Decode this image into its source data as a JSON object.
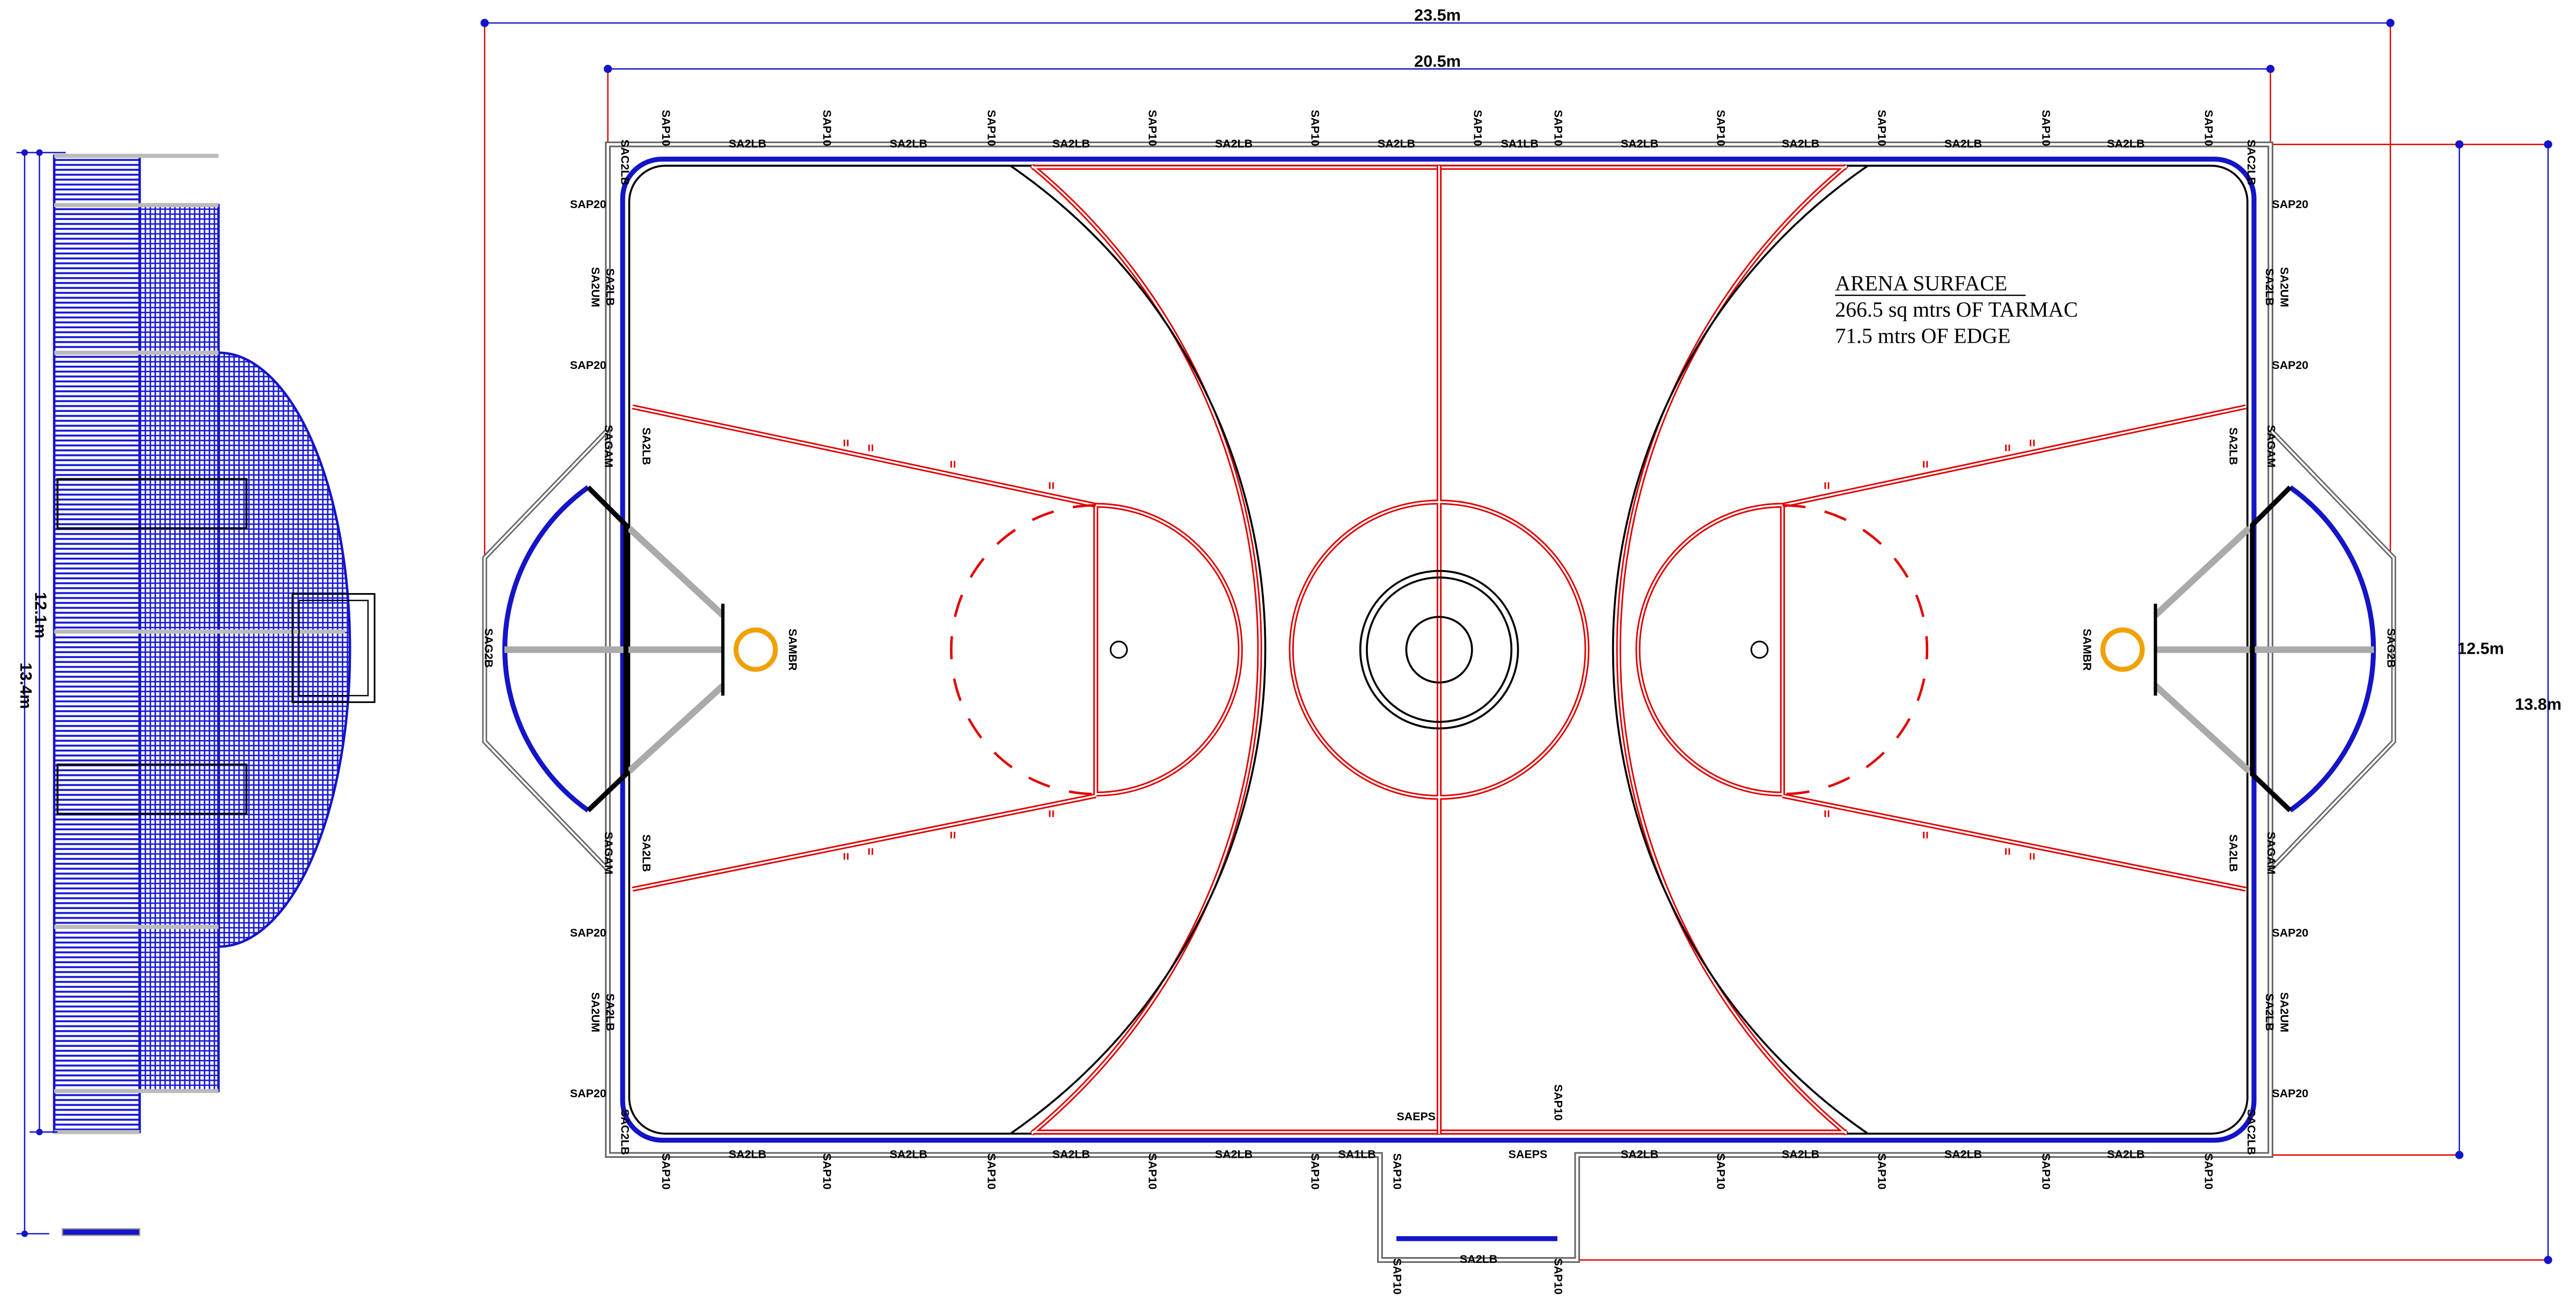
{
  "dimensions": {
    "overall_width": "23.5m",
    "court_width": "20.5m",
    "court_height": "12.5m",
    "overall_height": "13.8m",
    "side_inner": "12.1m",
    "side_outer": "13.4m"
  },
  "note": {
    "title": "ARENA SURFACE",
    "lines": [
      "266.5 sq mtrs OF TARMAC",
      "71.5 mtrs OF EDGE"
    ]
  },
  "labels": {
    "top": [
      "SAP10",
      "SA2LB",
      "SAP10",
      "SA2LB",
      "SAP10",
      "SA2LB",
      "SAP10",
      "SA2LB",
      "SAP10",
      "SA2LB",
      "SAP10",
      "SA1LB",
      "SAP10",
      "SA2LB",
      "SAP10",
      "SA2LB",
      "SAP10",
      "SA2LB",
      "SAP10",
      "SA2LB",
      "SAP10"
    ],
    "bottom": [
      "SAP10",
      "SA2LB",
      "SAP10",
      "SA2LB",
      "SAP10",
      "SA2LB",
      "SAP10",
      "SA2LB",
      "SAP10",
      "SA1LB",
      "SAP10",
      "SAEPS",
      "SAP10",
      "SAEPS",
      "SA2LB",
      "SAP10",
      "SA2LB",
      "SAP10",
      "SA2LB",
      "SAP10",
      "SA2LB",
      "SAP10"
    ],
    "left": [
      "SAP20",
      "SA2UM",
      "SA2LB",
      "SAP20",
      "SAGAM",
      "SA2LB",
      "SAG2B",
      "SAGAM",
      "SA2LB",
      "SAP20",
      "SA2UM",
      "SA2LB",
      "SAP20"
    ],
    "right": [
      "SAP20",
      "SA2UM",
      "SA2LB",
      "SAP20",
      "SAGAM",
      "SA2LB",
      "SAG2B",
      "SAGAM",
      "SA2LB",
      "SAP20",
      "SA2UM",
      "SA2LB",
      "SAP20"
    ],
    "corners": [
      "SAC2LB",
      "SAC2LB",
      "SAC2LB",
      "SAC2LB"
    ],
    "hoops": [
      "SAMBR",
      "SAMBR"
    ],
    "extension": [
      "SAP10",
      "SA2LB",
      "SAP10"
    ]
  }
}
